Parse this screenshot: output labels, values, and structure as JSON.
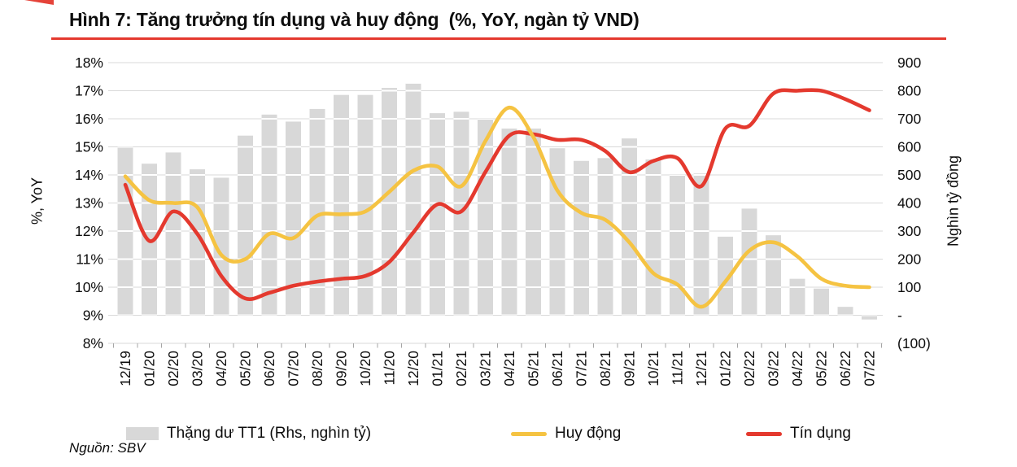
{
  "title": "Hình 7: Tăng trưởng tín dụng và huy động  (%, YoY, ngàn tỷ VND)",
  "source": "Nguồn: SBV",
  "colors": {
    "bar": "#D8D8D8",
    "grid": "#D9D9D9",
    "grid_on_bar": "#FFFFFF",
    "tick": "#A6A6A6",
    "text": "#0D0D0D",
    "huy_dong": "#F5C342",
    "tin_dung": "#E4392E",
    "underline": "#E4392E"
  },
  "chart_data": {
    "type": "combo",
    "title": "Hình 7: Tăng trưởng tín dụng và huy động (%, YoY, ngàn tỷ VND)",
    "grid": true,
    "legend_position": "bottom",
    "categories": [
      "12/19",
      "01/20",
      "02/20",
      "03/20",
      "04/20",
      "05/20",
      "06/20",
      "07/20",
      "08/20",
      "09/20",
      "10/20",
      "11/20",
      "12/20",
      "01/21",
      "02/21",
      "03/21",
      "04/21",
      "05/21",
      "06/21",
      "07/21",
      "08/21",
      "09/21",
      "10/21",
      "11/21",
      "12/21",
      "01/22",
      "02/22",
      "03/22",
      "04/22",
      "05/22",
      "06/22",
      "07/22"
    ],
    "left_axis": {
      "label": "%, YoY",
      "min": 8,
      "max": 18,
      "ticks": [
        "18%",
        "17%",
        "16%",
        "15%",
        "14%",
        "13%",
        "12%",
        "11%",
        "10%",
        "9%",
        "8%"
      ]
    },
    "right_axis": {
      "label": "Nghìn tỷ đồng",
      "min": -100,
      "max": 900,
      "ticks": [
        "900",
        "800",
        "700",
        "600",
        "500",
        "400",
        "300",
        "200",
        "100",
        "-",
        "(100)"
      ]
    },
    "series": [
      {
        "name": "Thặng dư TT1 (Rhs, nghìn tỷ)",
        "type": "bar",
        "axis": "right",
        "color": "#D8D8D8",
        "values": [
          600,
          540,
          580,
          520,
          490,
          640,
          715,
          690,
          735,
          785,
          785,
          810,
          825,
          720,
          725,
          700,
          665,
          665,
          595,
          550,
          560,
          630,
          555,
          500,
          505,
          280,
          380,
          285,
          130,
          95,
          30,
          -15
        ]
      },
      {
        "name": "Huy động",
        "type": "line",
        "axis": "left",
        "color": "#F5C342",
        "values": [
          13.95,
          13.1,
          13.0,
          12.85,
          11.15,
          11.0,
          11.9,
          11.75,
          12.55,
          12.6,
          12.7,
          13.4,
          14.15,
          14.3,
          13.6,
          15.2,
          16.4,
          15.35,
          13.45,
          12.65,
          12.4,
          11.6,
          10.5,
          10.1,
          9.3,
          10.2,
          11.3,
          11.6,
          11.1,
          10.3,
          10.05,
          10.0
        ]
      },
      {
        "name": "Tín dụng",
        "type": "line",
        "axis": "left",
        "color": "#E4392E",
        "values": [
          13.65,
          11.65,
          12.7,
          11.9,
          10.4,
          9.6,
          9.8,
          10.05,
          10.2,
          10.3,
          10.4,
          10.9,
          11.95,
          12.95,
          12.7,
          14.1,
          15.4,
          15.45,
          15.25,
          15.25,
          14.85,
          14.1,
          14.5,
          14.6,
          13.6,
          15.65,
          15.75,
          16.9,
          17.0,
          17.0,
          16.7,
          16.3
        ]
      }
    ]
  }
}
